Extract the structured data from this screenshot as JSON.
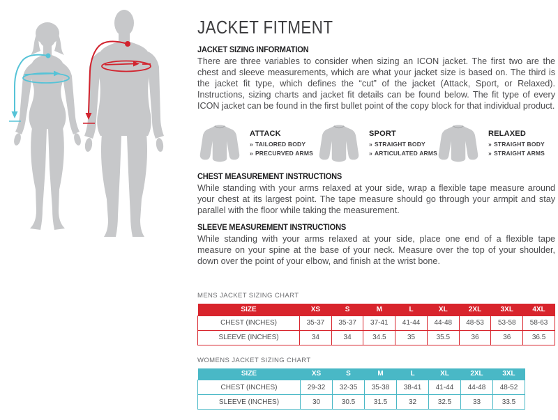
{
  "page": {
    "title": "JACKET FITMENT"
  },
  "sections": {
    "sizing_info": {
      "heading": "JACKET SIZING INFORMATION",
      "body": "There are three variables to consider when sizing an ICON jacket. The first two are the chest and sleeve measurements, which are what your jacket size is based on. The third is the jacket fit type, which defines the “cut” of the jacket (Attack, Sport, or Relaxed). Instructions, sizing charts and jacket fit details can be found below. The fit type of every ICON jacket can be found in the first bullet point of the copy block for that individual product."
    },
    "chest": {
      "heading": "CHEST MEASUREMENT INSTRUCTIONS",
      "body": "While standing with your arms relaxed at your side, wrap a flexible tape measure around your chest at its largest point. The tape measure should go through your armpit and stay parallel with the floor while taking the measurement."
    },
    "sleeve": {
      "heading": "SLEEVE MEASUREMENT INSTRUCTIONS",
      "body": "While standing with your arms relaxed at your side, place one end of a flexible tape measure on your spine at the base of your neck. Measure over the top of your shoulder, down over the point of your elbow, and finish at the wrist bone."
    }
  },
  "bullet_char": "»",
  "fit_types": [
    {
      "name": "ATTACK",
      "features": [
        "TAILORED BODY",
        "PRECURVED ARMS"
      ]
    },
    {
      "name": "SPORT",
      "features": [
        "STRAIGHT BODY",
        "ARTICULATED ARMS"
      ]
    },
    {
      "name": "RELAXED",
      "features": [
        "STRAIGHT BODY",
        "STRAIGHT ARMS"
      ]
    }
  ],
  "charts": {
    "mens": {
      "label": "MENS JACKET SIZING CHART",
      "accent": "#d8242c",
      "header": [
        "SIZE",
        "XS",
        "S",
        "M",
        "L",
        "XL",
        "2XL",
        "3XL",
        "4XL"
      ],
      "rows": [
        [
          "CHEST (INCHES)",
          "35-37",
          "35-37",
          "37-41",
          "41-44",
          "44-48",
          "48-53",
          "53-58",
          "58-63"
        ],
        [
          "SLEEVE (INCHES)",
          "34",
          "34",
          "34.5",
          "35",
          "35.5",
          "36",
          "36",
          "36.5"
        ]
      ]
    },
    "womens": {
      "label": "WOMENS JACKET SIZING CHART",
      "accent": "#49b8c6",
      "header": [
        "SIZE",
        "XS",
        "S",
        "M",
        "L",
        "XL",
        "2XL",
        "3XL"
      ],
      "rows": [
        [
          "CHEST (INCHES)",
          "29-32",
          "32-35",
          "35-38",
          "38-41",
          "41-44",
          "44-48",
          "48-52"
        ],
        [
          "SLEEVE (INCHES)",
          "30",
          "30.5",
          "31.5",
          "32",
          "32.5",
          "33",
          "33.5"
        ]
      ]
    }
  },
  "figures": {
    "silhouette_color": "#c7c8ca",
    "female_arrow_color": "#56c3d7",
    "male_arrow_color": "#d2232e"
  }
}
